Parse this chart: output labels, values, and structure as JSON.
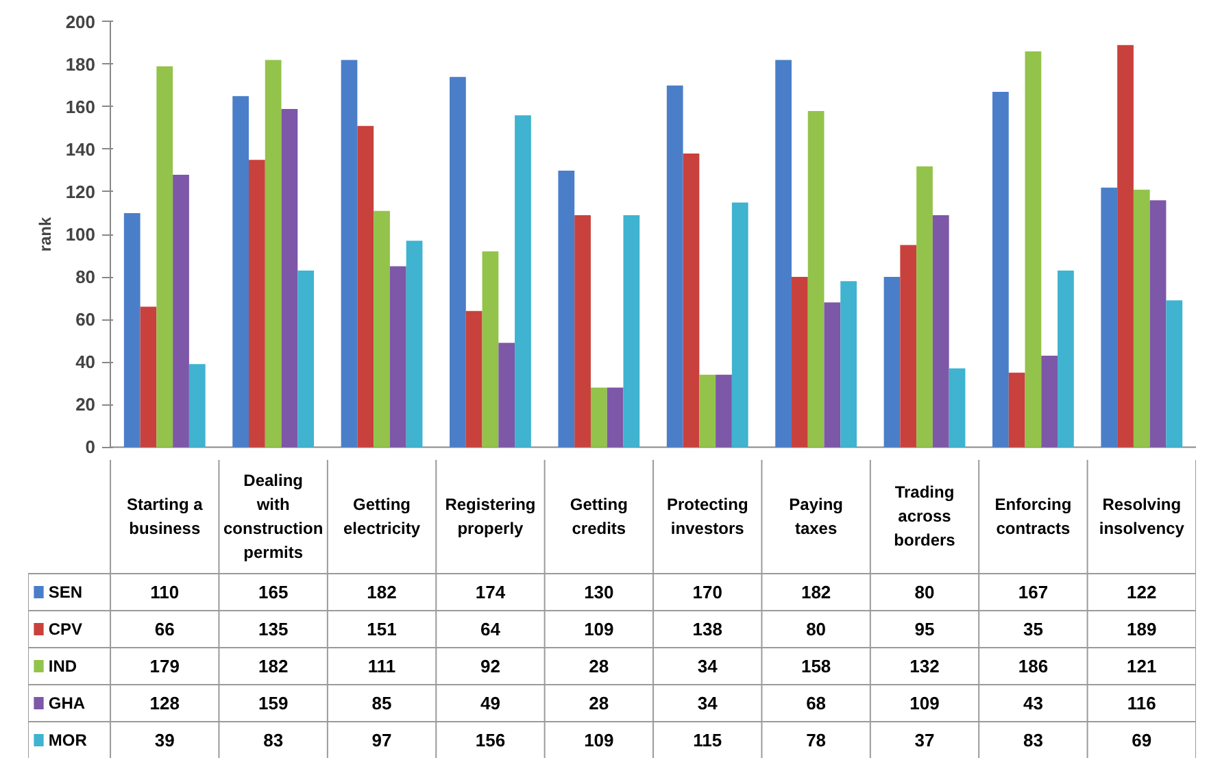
{
  "chart_data": {
    "type": "bar",
    "ylabel": "rank",
    "categories": [
      "Starting a business",
      "Dealing with construction permits",
      "Getting electricity",
      "Registering properly",
      "Getting credits",
      "Protecting investors",
      "Paying taxes",
      "Trading across borders",
      "Enforcing contracts",
      "Resolving insolvency"
    ],
    "series": [
      {
        "name": "SEN",
        "color": "#4a7ec9",
        "values": [
          110,
          165,
          182,
          174,
          130,
          170,
          182,
          80,
          167,
          122
        ]
      },
      {
        "name": "CPV",
        "color": "#c9413c",
        "values": [
          66,
          135,
          151,
          64,
          109,
          138,
          80,
          95,
          35,
          189
        ]
      },
      {
        "name": "IND",
        "color": "#93c34a",
        "values": [
          179,
          182,
          111,
          92,
          28,
          34,
          158,
          132,
          186,
          121
        ]
      },
      {
        "name": "GHA",
        "color": "#7d57a8",
        "values": [
          128,
          159,
          85,
          49,
          28,
          34,
          68,
          109,
          43,
          116
        ]
      },
      {
        "name": "MOR",
        "color": "#3fb3cf",
        "values": [
          39,
          83,
          97,
          156,
          109,
          115,
          78,
          37,
          83,
          69
        ]
      }
    ],
    "ylim": [
      0,
      200
    ],
    "yticks": [
      0,
      20,
      40,
      60,
      80,
      100,
      120,
      140,
      160,
      180,
      200
    ],
    "grid": false,
    "legend": "bottom left",
    "data_labels": true
  }
}
